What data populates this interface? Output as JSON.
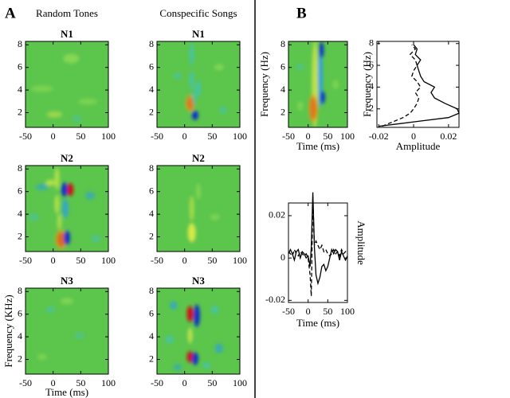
{
  "panel_a": {
    "label": "A",
    "columns": [
      "Random Tones",
      "Conspecific Songs"
    ],
    "plots": [
      {
        "title": "N1"
      },
      {
        "title": "N1"
      },
      {
        "title": "N2"
      },
      {
        "title": "N2"
      },
      {
        "title": "N3"
      },
      {
        "title": "N3"
      }
    ],
    "xlim": [
      -50,
      100
    ],
    "xticks": [
      -50,
      0,
      50,
      100
    ],
    "ylim": [
      0.7,
      8.3
    ],
    "yticks": [
      2,
      4,
      6,
      8
    ],
    "xlabel": "Time (ms)",
    "ylabel": "Frequency (KHz)"
  },
  "panel_b": {
    "label": "B",
    "spectrogram": {
      "xlim": [
        -50,
        100
      ],
      "xticks": [
        -50,
        0,
        50,
        100
      ],
      "ylim": [
        0.7,
        8.3
      ],
      "yticks": [
        2,
        4,
        6,
        8
      ],
      "xlabel": "Time (ms)",
      "ylabel": "Frequency (Hz)"
    },
    "frequency_profile": {
      "type": "line",
      "xlim": [
        -0.021,
        0.026
      ],
      "xticks": [
        -0.02,
        0,
        0.02
      ],
      "ylim": [
        0.3,
        8.2
      ],
      "yticks": [
        2,
        4,
        6,
        8
      ],
      "xlabel": "Amplitude",
      "ylabel": "Frequency (Hz)",
      "y": [
        0.4,
        0.8,
        1.2,
        1.6,
        2.0,
        2.5,
        3.0,
        3.5,
        4.0,
        4.5,
        5.0,
        5.5,
        6.0,
        6.5,
        7.0,
        7.5,
        7.9
      ],
      "series": [
        {
          "color": "#000000",
          "dashed": false,
          "values": [
            -0.02,
            0.0,
            0.02,
            0.026,
            0.025,
            0.018,
            0.012,
            0.01,
            0.012,
            0.006,
            0.004,
            0.003,
            0.002,
            0.004,
            0.001,
            0.002,
            0.0
          ]
        },
        {
          "color": "#000000",
          "dashed": true,
          "values": [
            -0.018,
            -0.012,
            -0.006,
            -0.002,
            0.0,
            0.002,
            0.003,
            0.001,
            0.004,
            0.002,
            -0.001,
            0.0,
            0.002,
            0.001,
            -0.002,
            0.001,
            -0.001
          ]
        }
      ]
    },
    "time_course": {
      "type": "line",
      "xlim": [
        -50,
        100
      ],
      "xticks": [
        -50,
        0,
        50,
        100
      ],
      "ylim": [
        -0.021,
        0.026
      ],
      "yticks": [
        -0.02,
        0,
        0.02
      ],
      "xlabel": "Time (ms)",
      "ylabel": "Amplitude",
      "x": [
        -50,
        -45,
        -40,
        -35,
        -30,
        -25,
        -20,
        -15,
        -10,
        -5,
        0,
        5,
        8,
        12,
        16,
        20,
        25,
        30,
        35,
        40,
        45,
        50,
        55,
        60,
        65,
        70,
        75,
        80,
        85,
        90,
        95,
        100
      ],
      "series": [
        {
          "color": "#000000",
          "dashed": false,
          "values": [
            0.002,
            0.004,
            0.002,
            -0.001,
            0.003,
            0.004,
            0.0,
            0.003,
            0.002,
            0.0,
            0.001,
            -0.004,
            0.005,
            0.031,
            0.005,
            -0.008,
            -0.012,
            -0.009,
            -0.004,
            -0.003,
            -0.006,
            -0.004,
            0.0,
            0.004,
            0.002,
            0.004,
            0.003,
            -0.001,
            0.003,
            0.001,
            -0.001,
            0.001
          ]
        },
        {
          "color": "#000000",
          "dashed": true,
          "values": [
            0.003,
            0.002,
            0.001,
            0.004,
            0.002,
            0.001,
            0.003,
            0.002,
            0.001,
            0.002,
            0.0,
            -0.008,
            -0.018,
            0.028,
            0.006,
            0.008,
            0.006,
            0.004,
            0.006,
            0.003,
            0.004,
            0.002,
            0.001,
            0.002,
            0.004,
            0.002,
            0.003,
            0.001,
            0.004,
            0.002,
            0.003,
            0.004
          ]
        }
      ]
    }
  }
}
